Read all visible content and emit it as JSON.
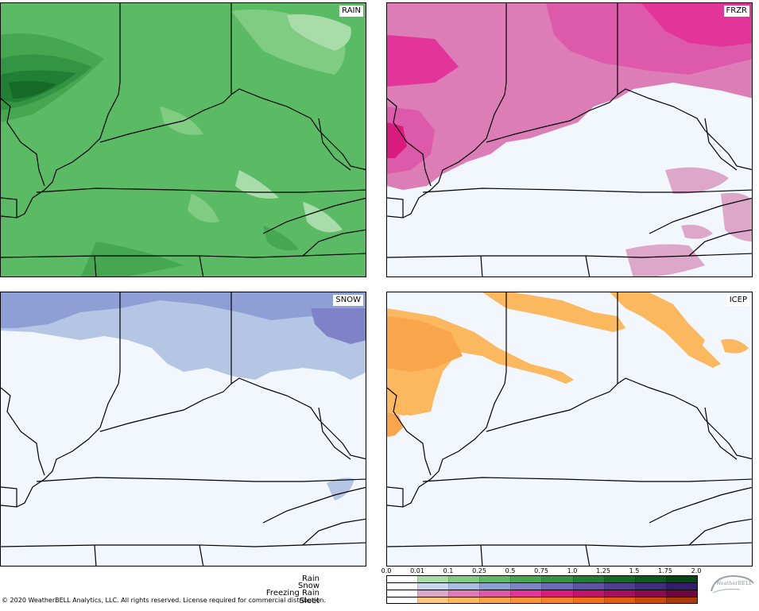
{
  "panels": [
    {
      "id": "rain",
      "label": "RAIN"
    },
    {
      "id": "frzr",
      "label": "FRZR"
    },
    {
      "id": "snow",
      "label": "SNOW"
    },
    {
      "id": "icep",
      "label": "ICEP"
    }
  ],
  "legend": {
    "ticks": [
      "0.0",
      "0.01",
      "0.1",
      "0.25",
      "0.5",
      "0.75",
      "1.0",
      "1.25",
      "1.5",
      "1.75",
      "2.0"
    ],
    "rows": [
      {
        "label": "Rain",
        "colors": [
          "#ffffff",
          "#a8dca8",
          "#7fcc82",
          "#5bbb64",
          "#45a851",
          "#339543",
          "#207f34",
          "#136b27",
          "#0d5a1f",
          "#084516"
        ]
      },
      {
        "label": "Snow",
        "colors": [
          "#ffffff",
          "#c6d6ee",
          "#a9bce3",
          "#8e9fd6",
          "#7d83c6",
          "#6f6ab7",
          "#5f52a5",
          "#503d93",
          "#422c80",
          "#341d6d"
        ]
      },
      {
        "label": "Freezing Rain",
        "colors": [
          "#ffffff",
          "#dda7c9",
          "#dd7db8",
          "#dd5aab",
          "#e33599",
          "#d81b7d",
          "#c1156d",
          "#a51060",
          "#8a0b4f",
          "#6e063f"
        ]
      },
      {
        "label": "Sleet",
        "colors": [
          "#ffffff",
          "#fdc77b",
          "#fbb85e",
          "#f9a54b",
          "#f7943b",
          "#f5832b",
          "#f0701c",
          "#e25e10",
          "#c84c08",
          "#a93a04"
        ]
      }
    ]
  },
  "copyright": "© 2020 WeatherBELL Analytics, LLC. All rights reserved. License required for commercial distribution.",
  "logo": {
    "text": "WeatherBELL"
  },
  "colors": {
    "background": "#f2f6fd",
    "rain_light": "#a8dca8",
    "rain_mid": "#5bbb64",
    "rain_dark": "#136b27",
    "frzr_light": "#dda7c9",
    "frzr_mid": "#dd5aab",
    "frzr_dark": "#d81b7d",
    "snow_light": "#b4c6e4",
    "snow_mid": "#8e9fd6",
    "icep": "#fbb85e"
  }
}
